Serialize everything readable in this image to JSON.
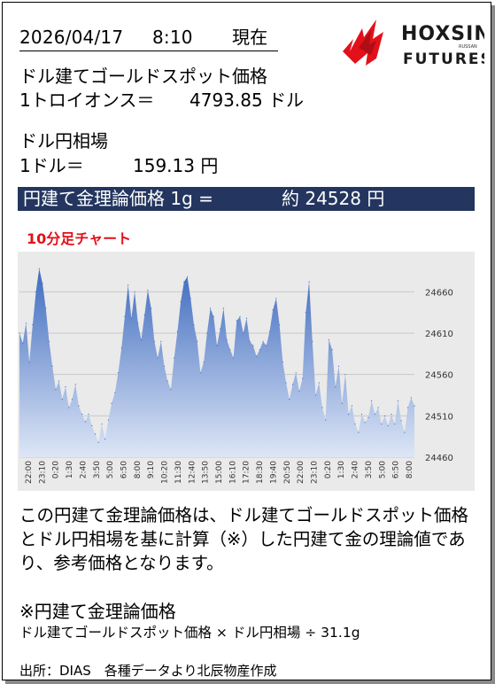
{
  "header": {
    "date": "2026/04/17",
    "time": "8:10",
    "as_of": "現在",
    "logo_text": "HOXSIN",
    "logo_sub": "FUTURES",
    "logo_tiny": "RUSSAN"
  },
  "spot": {
    "title": "ドル建てゴールドスポット価格",
    "unit_label": "1トロイオンス＝",
    "value": "4793.85 ドル"
  },
  "fx": {
    "title": "ドル円相場",
    "unit_label": "1ドル＝",
    "value": "159.13 円"
  },
  "banner": {
    "label": "円建て金理論価格 1g =",
    "value": "約 24528 円"
  },
  "colors": {
    "banner_bg": "#24365f",
    "caption_red": "#e3101a",
    "area_top": "#3f6bbf",
    "area_bottom": "#dde6f6",
    "chart_bg": "#eaeaea"
  },
  "chart_data": {
    "type": "area",
    "title": "10分足チャート",
    "y_ticks": [
      24460,
      24510,
      24560,
      24610,
      24660
    ],
    "ylim": [
      24460,
      24700
    ],
    "x_ticks": [
      "22:00",
      "23:10",
      "0:20",
      "1:30",
      "2:40",
      "3:50",
      "5:00",
      "6:50",
      "8:00",
      "9:10",
      "10:20",
      "11:30",
      "12:40",
      "13:50",
      "15:00",
      "16:10",
      "17:20",
      "18:30",
      "19:40",
      "20:50",
      "22:00",
      "23:10",
      "0:20",
      "1:30",
      "2:40",
      "3:50",
      "5:00",
      "6:50",
      "8:00"
    ],
    "grid": true,
    "values": [
      24610,
      24598,
      24622,
      24575,
      24620,
      24660,
      24688,
      24670,
      24640,
      24600,
      24570,
      24542,
      24552,
      24530,
      24545,
      24520,
      24530,
      24548,
      24522,
      24512,
      24503,
      24512,
      24498,
      24488,
      24478,
      24500,
      24482,
      24505,
      24525,
      24538,
      24562,
      24592,
      24630,
      24668,
      24628,
      24660,
      24622,
      24602,
      24632,
      24662,
      24640,
      24600,
      24580,
      24600,
      24570,
      24552,
      24542,
      24580,
      24612,
      24648,
      24672,
      24678,
      24652,
      24620,
      24600,
      24562,
      24575,
      24610,
      24640,
      24630,
      24595,
      24615,
      24640,
      24602,
      24590,
      24580,
      24625,
      24630,
      24610,
      24628,
      24600,
      24595,
      24582,
      24590,
      24600,
      24595,
      24612,
      24638,
      24652,
      24620,
      24575,
      24550,
      24530,
      24548,
      24562,
      24540,
      24555,
      24635,
      24672,
      24600,
      24535,
      24550,
      24520,
      24505,
      24602,
      24590,
      24545,
      24570,
      24525,
      24560,
      24512,
      24522,
      24500,
      24490,
      24512,
      24502,
      24508,
      24528,
      24512,
      24520,
      24500,
      24510,
      24498,
      24512,
      24500,
      24528,
      24504,
      24490,
      24520,
      24532,
      24522
    ]
  },
  "description": {
    "text": "この円建て金理論価格は、ドル建てゴールドスポット価格とドル円相場を基に計算（※）した円建て金の理論値であり、参考価格となります。"
  },
  "formula": {
    "title": "※円建て金理論価格",
    "text": "ドル建てゴールドスポット価格 × ドル円相場 ÷ 31.1g"
  },
  "source": {
    "text": "出所：DIAS　各種データより北辰物産作成"
  }
}
